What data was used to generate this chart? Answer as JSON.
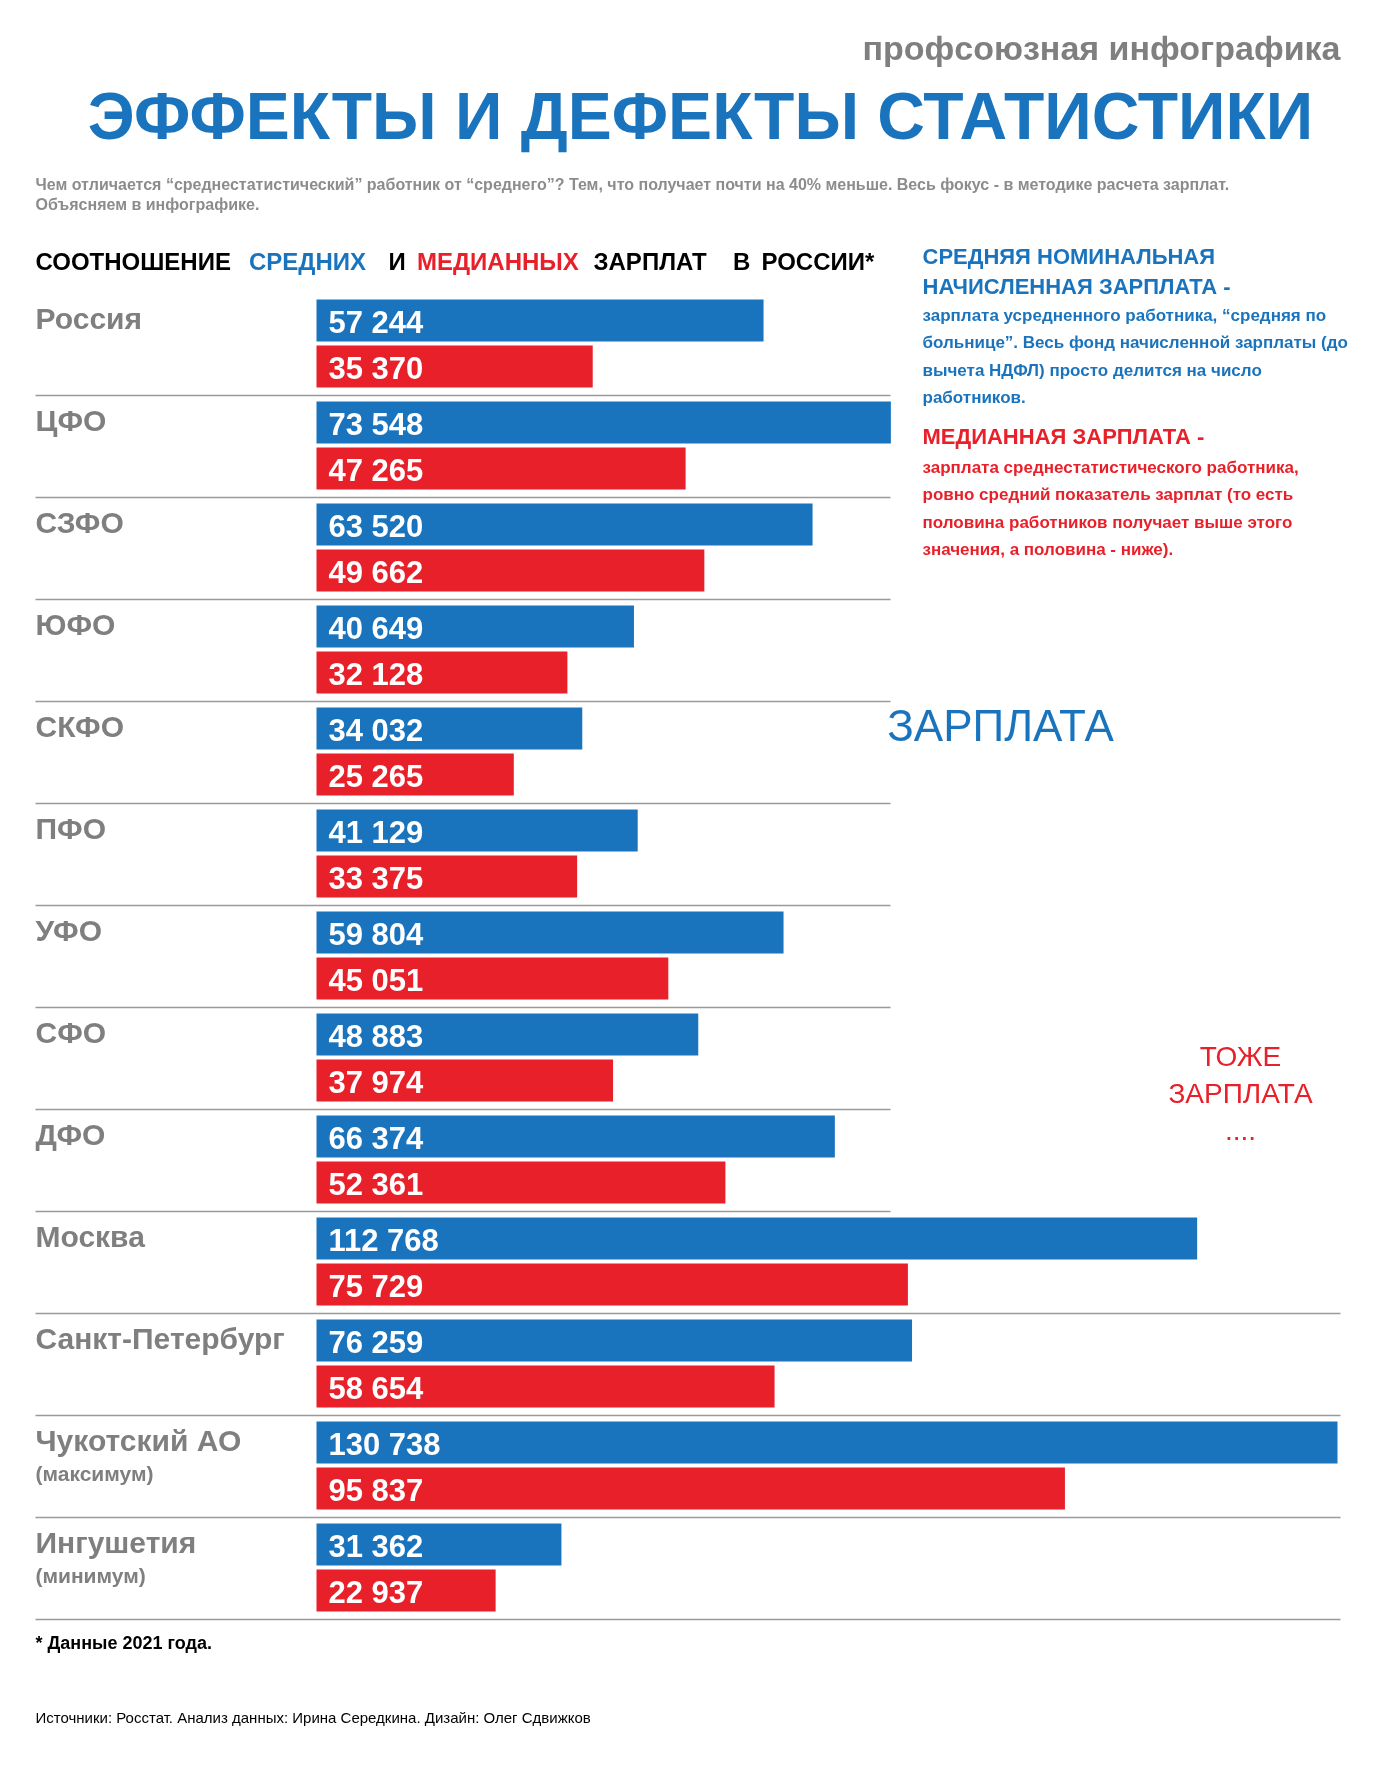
{
  "chart_data": {
    "type": "bar",
    "orientation": "horizontal",
    "title": "ЭФФЕКТЫ И ДЕФЕКТЫ СТАТИСТИКИ",
    "subtitle": "СООТНОШЕНИЕ СРЕДНИХ И МЕДИАННЫХ ЗАРПЛАТ В РОССИИ*",
    "categories": [
      "Россия",
      "ЦФО",
      "СЗФО",
      "ЮФО",
      "СКФО",
      "ПФО",
      "УФО",
      "СФО",
      "ДФО",
      "Москва",
      "Санкт-Петербург",
      "Чукотский АО\n(максимум)",
      "Ингушетия\n(минимум)"
    ],
    "series": [
      {
        "name": "СРЕДНЯЯ НОМИНАЛЬНАЯ НАЧИСЛЕННАЯ ЗАРПЛАТА -",
        "color": "#1a74bd",
        "values": [
          57244,
          73548,
          63520,
          40649,
          34032,
          41129,
          59804,
          48883,
          66374,
          112768,
          76259,
          130738,
          31362
        ],
        "value_labels": [
          "57 244",
          "73 548",
          "63 520",
          "40 649",
          "34 032",
          "41 129",
          "59 804",
          "48 883",
          "66 374",
          "112 768",
          "76 259",
          "130 738",
          "31 362"
        ]
      },
      {
        "name": "МЕДИАННАЯ ЗАРПЛАТА -",
        "color": "#e8202a",
        "values": [
          35370,
          47265,
          49662,
          32128,
          25265,
          33375,
          45051,
          37974,
          52361,
          75729,
          58654,
          95837,
          22937
        ],
        "value_labels": [
          "35 370",
          "47 265",
          "49 662",
          "32 128",
          "25 265",
          "33 375",
          "45 051",
          "37 974",
          "52 361",
          "75 729",
          "58 654",
          "95 837",
          "22 937"
        ]
      }
    ],
    "legend": "top right",
    "annotations": [
      "профсоюзная инфографика",
      "Чем отличается “среднестатистический” работник от “среднего”? Тем, что получает почти на 40% меньше. Весь фокус - в методике расчета зарплат. Объясняем в инфографике.",
      "зарплата усредненного работника, “средняя по больнице”. Весь фонд начисленной зарплаты (до вычета НДФЛ) просто делится на число работников.",
      "зарплата среднестатистического работника, ровно средний показатель зарплат (то есть половина работников получает выше этого значения, а половина - ниже).",
      "ЗАРПЛАТА",
      "ТОЖЕ\nЗАРПЛАТА\n....",
      "*  Данные 2021 года.",
      "Источники: Росстат.  Анализ данных: Ирина Середкина. Дизайн: Олег Сдвижков"
    ]
  }
}
